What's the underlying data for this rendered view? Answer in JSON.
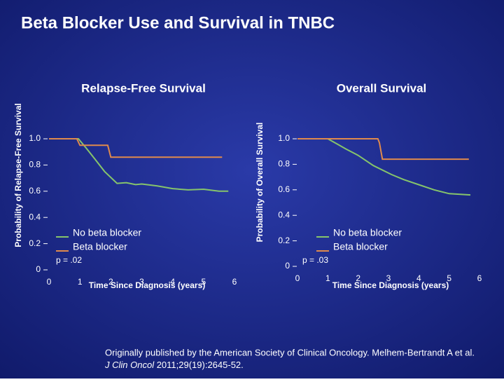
{
  "title": "Beta Blocker Use and Survival in TNBC",
  "footnote": {
    "line1": "Originally published by the American Society of Clinical Oncology. Melhem-Bertrandt A et al.",
    "journal": "J Clin Oncol",
    "citation": " 2011;29(19):2645-52."
  },
  "chart_data": [
    {
      "type": "line",
      "title": "Relapse-Free Survival",
      "x_label": "Time Since Diagnosis (years)",
      "y_label": "Probability of Relapse-Free Survival",
      "xlim": [
        0,
        6
      ],
      "xticks": [
        0,
        1,
        2,
        3,
        4,
        5,
        6
      ],
      "ylim": [
        0,
        1
      ],
      "yticks": [
        0,
        0.2,
        0.4,
        0.6,
        0.8,
        {
          "value": 1,
          "label": "1.0"
        }
      ],
      "annotation": "p = .02",
      "series": [
        {
          "name": "No beta blocker",
          "color": "#86c46b",
          "x": [
            0,
            0.95,
            1.2,
            1.5,
            1.8,
            2.2,
            2.5,
            2.8,
            3.0,
            3.5,
            4.0,
            4.5,
            5.0,
            5.5,
            5.8
          ],
          "values": [
            1.0,
            1.0,
            0.93,
            0.84,
            0.75,
            0.66,
            0.665,
            0.65,
            0.655,
            0.64,
            0.62,
            0.61,
            0.615,
            0.6,
            0.6
          ]
        },
        {
          "name": "Beta blocker",
          "color": "#e08a4c",
          "x": [
            0,
            0.9,
            1.0,
            1.2,
            1.9,
            2.0,
            5.6
          ],
          "values": [
            1.0,
            1.0,
            0.95,
            0.95,
            0.95,
            0.86,
            0.86
          ]
        }
      ]
    },
    {
      "type": "line",
      "title": "Overall Survival",
      "x_label": "Time Since Diagnosis (years)",
      "y_label": "Probability of Overall Survival",
      "xlim": [
        0,
        6
      ],
      "xticks": [
        0,
        1,
        2,
        3,
        4,
        5,
        6
      ],
      "ylim": [
        0,
        1
      ],
      "yticks": [
        0,
        0.2,
        0.4,
        0.6,
        0.8,
        {
          "value": 1,
          "label": "1.0"
        }
      ],
      "annotation": "p = .03",
      "series": [
        {
          "name": "No beta blocker",
          "color": "#86c46b",
          "x": [
            0,
            1.0,
            1.3,
            1.6,
            2.0,
            2.5,
            3.1,
            3.5,
            4.0,
            4.5,
            5.0,
            5.7
          ],
          "values": [
            1.0,
            1.0,
            0.96,
            0.92,
            0.87,
            0.79,
            0.72,
            0.68,
            0.64,
            0.6,
            0.57,
            0.56
          ]
        },
        {
          "name": "Beta blocker",
          "color": "#e08a4c",
          "x": [
            0,
            2.65,
            2.7,
            2.8,
            5.65
          ],
          "values": [
            1.0,
            1.0,
            0.97,
            0.84,
            0.84
          ]
        }
      ]
    }
  ]
}
